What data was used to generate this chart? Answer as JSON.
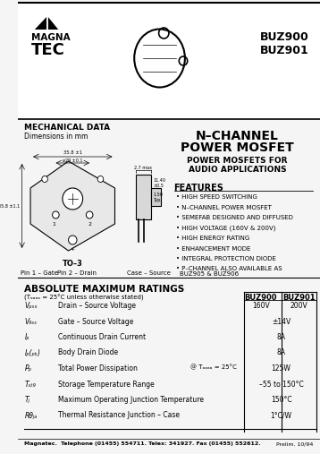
{
  "bg_color": "#f0f0f0",
  "header_line_color": "#000000",
  "title_part1": "BUZ900",
  "title_part2": "BUZ901",
  "subtitle1": "N–CHANNEL",
  "subtitle2": "POWER MOSFET",
  "logo_text1": "MAGNA",
  "logo_text2": "TEC",
  "mech_data": "MECHANICAL DATA",
  "dimensions": "Dimensions in mm",
  "app_text1": "POWER MOSFETS FOR",
  "app_text2": "AUDIO APPLICATIONS",
  "features_title": "FEATURES",
  "features": [
    "HIGH SPEED SWITCHING",
    "N–CHANNEL POWER MOSFET",
    "SEMEFAB DESIGNED AND DIFFUSED",
    "HIGH VOLTAGE (160V & 200V)",
    "HIGH ENERGY RATING",
    "ENHANCEMENT MODE",
    "INTEGRAL PROTECTION DIODE",
    "P–CHANNEL ALSO AVAILABLE AS\n    BUZ905 & BUZ906"
  ],
  "package": "TO–3",
  "pin1": "Pin 1 – Gate",
  "pin2": "Pin 2 – Drain",
  "pin3": "Case – Source",
  "table_title": "ABSOLUTE MAXIMUM RATINGS",
  "table_subtitle": "(Tₐₕₐₐₐ = 25°C unless otherwise stated)",
  "col_buz900": "BUZ900",
  "col_buz901": "BUZ901",
  "rows": [
    {
      "symbol": "Vₚₛₓ",
      "param": "Drain – Source Voltage",
      "cond": "",
      "buz900": "160V",
      "buz901": "200V"
    },
    {
      "symbol": "V₉ₛₛ",
      "param": "Gate – Source Voltage",
      "cond": "",
      "buz900": "±14V",
      "buz901": ""
    },
    {
      "symbol": "Iₚ",
      "param": "Continuous Drain Current",
      "cond": "",
      "buz900": "8A",
      "buz901": ""
    },
    {
      "symbol": "Iₚ₍ₚₖ₎",
      "param": "Body Drain Diode",
      "cond": "",
      "buz900": "8A",
      "buz901": ""
    },
    {
      "symbol": "Pₚ",
      "param": "Total Power Dissipation",
      "cond": "@ Tₐₐₐₐ = 25°C",
      "buz900": "125W",
      "buz901": ""
    },
    {
      "symbol": "Tₛₜ₉",
      "param": "Storage Temperature Range",
      "cond": "",
      "buz900": "–55 to 150°C",
      "buz901": ""
    },
    {
      "symbol": "Tⱼ",
      "param": "Maximum Operating Junction Temperature",
      "cond": "",
      "buz900": "150°C",
      "buz901": ""
    },
    {
      "symbol": "Rθⱼₐ",
      "param": "Thermal Resistance Junction – Case",
      "cond": "",
      "buz900": "1°C/W",
      "buz901": ""
    }
  ],
  "footer": "Magnatec.  Telephone (01455) 554711. Telex: 341927. Fax (01455) 552612.",
  "prelim": "Prelim. 10/94"
}
